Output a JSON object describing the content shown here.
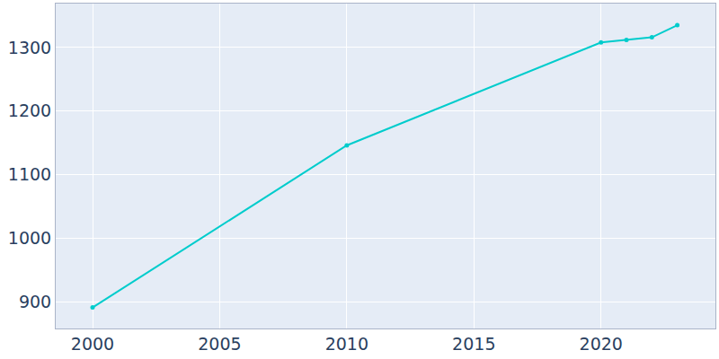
{
  "chart_data": {
    "type": "line",
    "x": [
      2000,
      2010,
      2020,
      2021,
      2022,
      2023
    ],
    "values": [
      891,
      1146,
      1308,
      1312,
      1316,
      1335
    ],
    "color": "#00cccc",
    "marker": "circle",
    "xlim": [
      1998.55,
      2024.5
    ],
    "xticks": [
      2000,
      2005,
      2010,
      2015,
      2020
    ],
    "ylim": [
      858,
      1369
    ],
    "yticks": [
      900,
      1000,
      1100,
      1200,
      1300
    ],
    "grid": true
  }
}
